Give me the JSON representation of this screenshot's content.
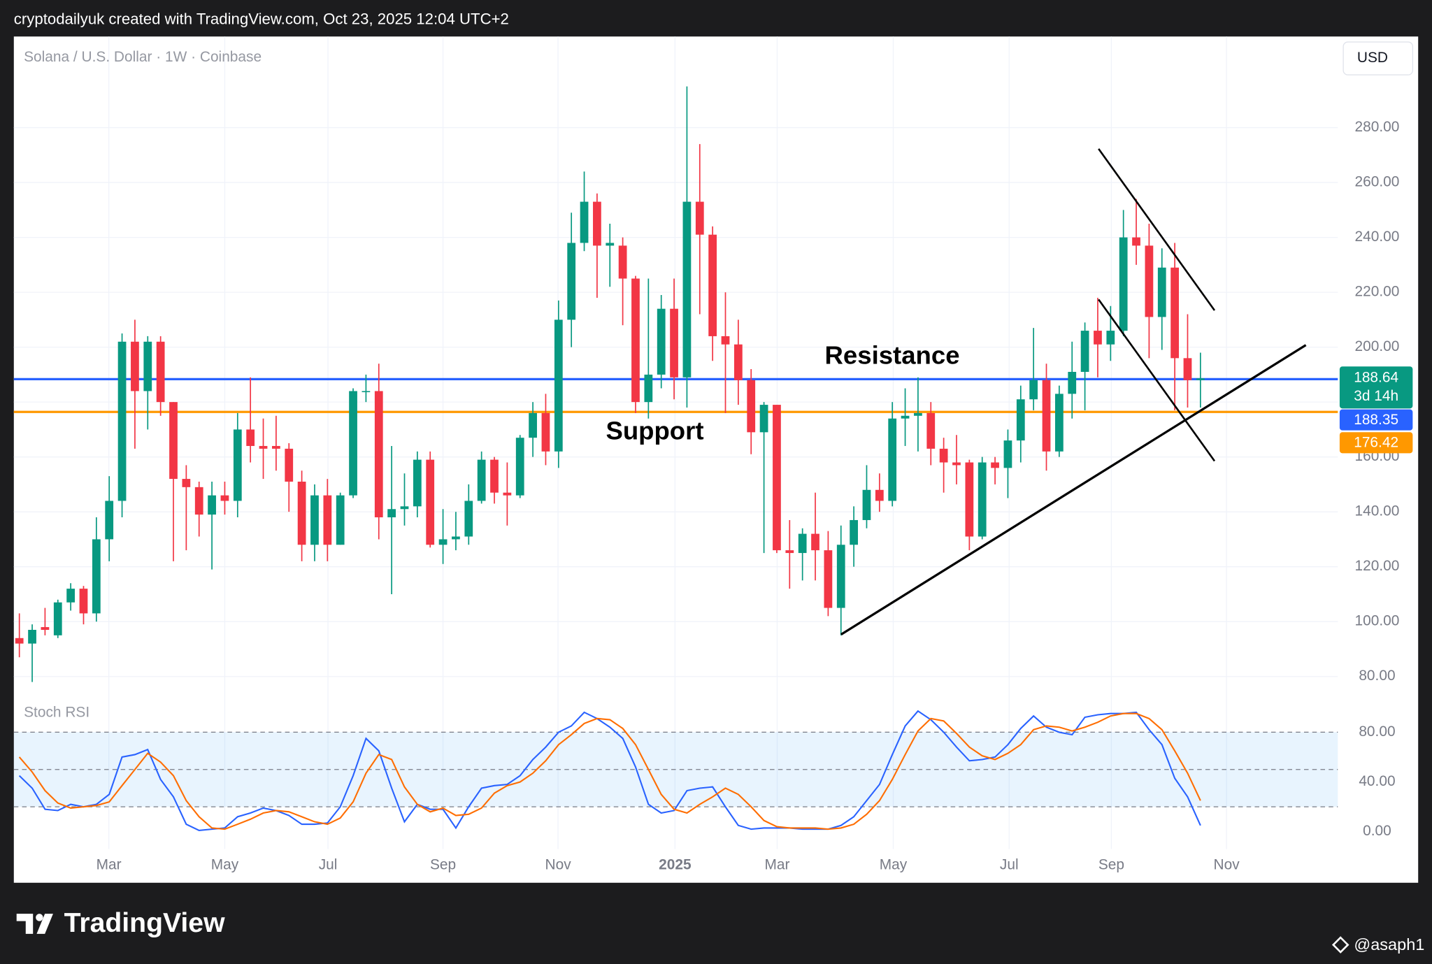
{
  "header": {
    "text": "cryptodailyuk created with TradingView.com, Oct 23, 2025 12:04 UTC+2"
  },
  "chart_data": [
    {
      "type": "candlestick",
      "title": "Solana / U.S. Dollar · 1W · Coinbase",
      "currency": "USD",
      "open": [
        94,
        92,
        98,
        95,
        107,
        112,
        103,
        130,
        144,
        202,
        184,
        202,
        180,
        152,
        149,
        139,
        146,
        144,
        170,
        164,
        164,
        163,
        151,
        128,
        146,
        128,
        146,
        184,
        184,
        138,
        141,
        142,
        159,
        128,
        130,
        131,
        144,
        159,
        147,
        146,
        167,
        176,
        162,
        210,
        238,
        253,
        237,
        237,
        225,
        180,
        190,
        214,
        189,
        253,
        241,
        204,
        201,
        188,
        169,
        179,
        126,
        125,
        132,
        126,
        105,
        128,
        137,
        148,
        144,
        174,
        175,
        176,
        163,
        158,
        158,
        131,
        158,
        156,
        166,
        181,
        188,
        162,
        183,
        191,
        206,
        201,
        206,
        240,
        237,
        211,
        229,
        196,
        188
      ],
      "high": [
        103,
        99,
        105,
        108,
        114,
        113,
        138,
        153,
        205,
        210,
        204,
        204,
        180,
        157,
        151,
        151,
        151,
        176,
        189,
        174,
        175,
        165,
        155,
        150,
        152,
        147,
        185,
        190,
        194,
        164,
        154,
        162,
        162,
        141,
        140,
        150,
        162,
        160,
        158,
        168,
        180,
        183,
        217,
        249,
        264,
        256,
        245,
        240,
        226,
        225,
        219,
        225,
        295,
        274,
        244,
        220,
        210,
        192,
        180,
        179,
        137,
        134,
        147,
        133,
        135,
        142,
        157,
        154,
        180,
        185,
        189,
        180,
        167,
        168,
        159,
        160,
        160,
        170,
        186,
        207,
        194,
        186,
        202,
        209,
        218,
        215,
        250,
        254,
        245,
        236,
        238,
        212,
        198
      ],
      "low": [
        87,
        78,
        95,
        94,
        104,
        99,
        100,
        122,
        138,
        163,
        170,
        175,
        122,
        126,
        131,
        119,
        139,
        138,
        158,
        152,
        155,
        140,
        122,
        122,
        122,
        128,
        145,
        180,
        130,
        110,
        135,
        138,
        127,
        121,
        126,
        128,
        143,
        143,
        135,
        145,
        160,
        157,
        156,
        200,
        235,
        218,
        222,
        208,
        176,
        174,
        185,
        181,
        178,
        212,
        195,
        176,
        179,
        161,
        125,
        125,
        112,
        115,
        115,
        102,
        95,
        120,
        134,
        140,
        142,
        164,
        162,
        157,
        147,
        150,
        126,
        130,
        150,
        145,
        158,
        177,
        155,
        160,
        174,
        177,
        189,
        195,
        204,
        230,
        196,
        199,
        177,
        178,
        178
      ],
      "close": [
        92,
        97,
        97,
        107,
        112,
        103,
        130,
        144,
        202,
        184,
        202,
        180,
        152,
        149,
        139,
        146,
        144,
        170,
        164,
        163,
        163,
        151,
        128,
        146,
        128,
        146,
        184,
        184,
        138,
        141,
        142,
        159,
        128,
        130,
        131,
        144,
        159,
        147,
        146,
        167,
        176,
        162,
        210,
        238,
        253,
        237,
        238,
        225,
        180,
        190,
        214,
        189,
        253,
        241,
        204,
        201,
        188,
        169,
        179,
        126,
        125,
        132,
        126,
        105,
        128,
        137,
        148,
        144,
        174,
        175,
        176,
        163,
        158,
        157,
        131,
        158,
        156,
        166,
        181,
        188,
        162,
        183,
        191,
        206,
        201,
        206,
        240,
        237,
        211,
        229,
        196,
        188,
        188.64
      ],
      "up_color": "#089981",
      "down_color": "#f23645",
      "xlim": [
        -0.43,
        102.7
      ],
      "xticks": [
        {
          "value": 6.97,
          "label": "Mar"
        },
        {
          "value": 16.0,
          "label": "May"
        },
        {
          "value": 24.04,
          "label": "Jul"
        },
        {
          "value": 33.0,
          "label": "Sep"
        },
        {
          "value": 41.96,
          "label": "Nov"
        },
        {
          "value": 51.07,
          "label": "2025"
        },
        {
          "value": 59.03,
          "label": "Mar"
        },
        {
          "value": 68.07,
          "label": "May"
        },
        {
          "value": 77.1,
          "label": "Jul"
        },
        {
          "value": 85.06,
          "label": "Sep"
        },
        {
          "value": 94.03,
          "label": "Nov"
        }
      ],
      "ylim": [
        73.7,
        313.2
      ],
      "yticks": [
        {
          "value": 80,
          "label": "80.00"
        },
        {
          "value": 100,
          "label": "100.00"
        },
        {
          "value": 120,
          "label": "120.00"
        },
        {
          "value": 140,
          "label": "140.00"
        },
        {
          "value": 160,
          "label": "160.00"
        },
        {
          "value": 180,
          "label": "180.00"
        },
        {
          "value": 200,
          "label": "200.00"
        },
        {
          "value": 220,
          "label": "220.00"
        },
        {
          "value": 240,
          "label": "240.00"
        },
        {
          "value": 260,
          "label": "260.00"
        },
        {
          "value": 280,
          "label": "280.00"
        }
      ],
      "grid": true,
      "hlines": [
        {
          "value": 188.35,
          "color": "#2962ff"
        },
        {
          "value": 176.42,
          "color": "#ff9800"
        }
      ],
      "last_price": 188.64,
      "countdown": "3d 14h",
      "annotations": [
        "Resistance",
        "Support"
      ]
    },
    {
      "type": "line",
      "title": "Stoch RSI",
      "series": [
        {
          "color": "#2962ff",
          "values": [
            45,
            35,
            18,
            17,
            22,
            20,
            22,
            30,
            60,
            62,
            66,
            42,
            28,
            6,
            1,
            2,
            3,
            12,
            15,
            19,
            17,
            13,
            6,
            6,
            7,
            20,
            45,
            75,
            65,
            35,
            8,
            22,
            18,
            18,
            3,
            20,
            35,
            37,
            38,
            45,
            58,
            68,
            80,
            85,
            96,
            91,
            84,
            75,
            52,
            22,
            15,
            17,
            33,
            35,
            36,
            20,
            5,
            2,
            3,
            3,
            3,
            2,
            2,
            2,
            5,
            12,
            25,
            38,
            62,
            85,
            97,
            90,
            80,
            68,
            57,
            58,
            60,
            70,
            83,
            93,
            84,
            80,
            78,
            92,
            94,
            95,
            95,
            96,
            82,
            70,
            43,
            28,
            5
          ]
        },
        {
          "color": "#ff6d00",
          "values": [
            60,
            48,
            33,
            23,
            19,
            20,
            21,
            24,
            37,
            50,
            63,
            56,
            45,
            25,
            12,
            3,
            2,
            6,
            10,
            15,
            17,
            16,
            12,
            8,
            6,
            11,
            24,
            47,
            62,
            58,
            36,
            22,
            16,
            19,
            13,
            14,
            19,
            31,
            37,
            40,
            47,
            57,
            70,
            78,
            87,
            91,
            90,
            83,
            70,
            50,
            30,
            18,
            15,
            22,
            28,
            35,
            30,
            20,
            9,
            4,
            3,
            3,
            3,
            2,
            3,
            6,
            14,
            25,
            42,
            62,
            81,
            91,
            89,
            79,
            68,
            61,
            58,
            63,
            70,
            82,
            85,
            84,
            81,
            84,
            88,
            93,
            95,
            95,
            91,
            82,
            65,
            47,
            25
          ]
        }
      ],
      "xlim": [
        -0.43,
        102.7
      ],
      "ylim": [
        -13.9,
        109.4
      ],
      "yticks": [
        {
          "value": 0,
          "label": "0.00"
        },
        {
          "value": 40,
          "label": "40.00"
        },
        {
          "value": 80,
          "label": "80.00"
        }
      ],
      "band": [
        20,
        80
      ],
      "midline": 50
    }
  ],
  "footer": {
    "logo": "TradingView",
    "user": "@asaph1"
  }
}
